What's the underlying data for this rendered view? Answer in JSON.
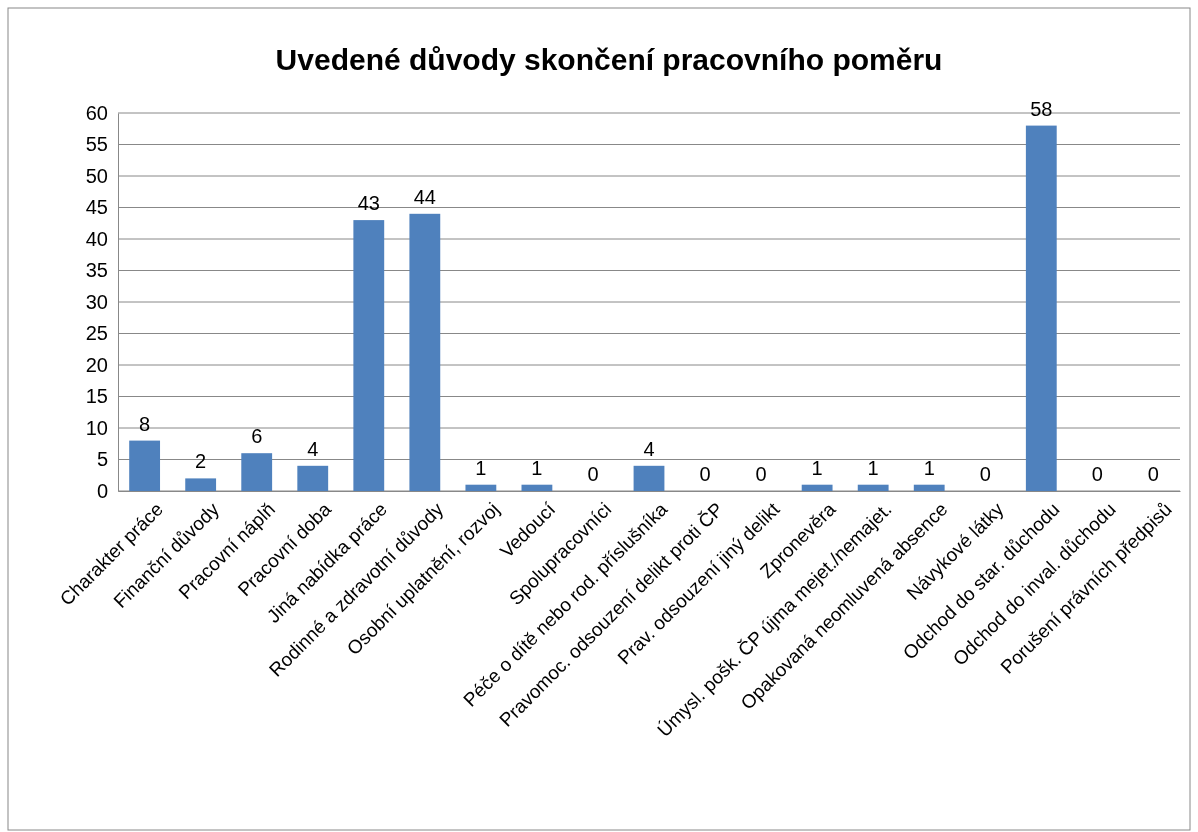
{
  "chart_data": {
    "type": "bar",
    "title": "Uvedené důvody skončení pracovního poměru",
    "categories": [
      "Charakter práce",
      "Finanční důvody",
      "Pracovní náplň",
      "Pracovní doba",
      "Jiná nabídka práce",
      "Rodinné a zdravotní důvody",
      "Osobní uplatnění, rozvoj",
      "Vedoucí",
      "Spolupracovníci",
      "Péče o dítě nebo rod. příslušníka",
      "Pravomoc. odsouzení delikt proti ČP",
      "Prav. odsouzení jiný delikt",
      "Zpronevěra",
      "Úmysl. pošk. ČP újma mejet./nemajet.",
      "Opakovaná neomluvená absence",
      "Návykové látky",
      "Odchod do star. důchodu",
      "Odchod do inval. důchodu",
      "Porušení právních předpisů"
    ],
    "values": [
      8,
      2,
      6,
      4,
      43,
      44,
      1,
      1,
      0,
      4,
      0,
      0,
      1,
      1,
      1,
      0,
      58,
      0,
      0
    ],
    "color": "#4f81bd",
    "data_labels": true,
    "ylim": [
      0,
      60
    ],
    "yticks": [
      0,
      5,
      10,
      15,
      20,
      25,
      30,
      35,
      40,
      45,
      50,
      55,
      60
    ],
    "grid": "y"
  }
}
